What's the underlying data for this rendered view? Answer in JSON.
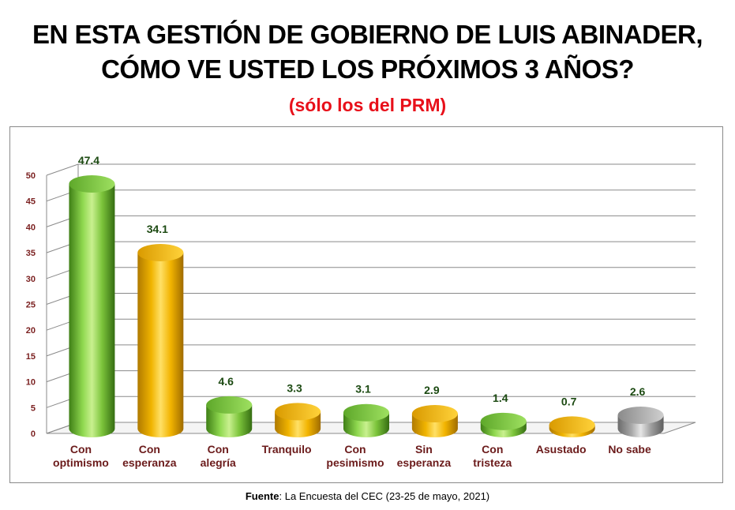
{
  "title_lines": [
    "EN ESTA GESTIÓN DE GOBIERNO DE LUIS ABINADER,",
    "CÓMO VE USTED LOS PRÓXIMOS 3 AÑOS?"
  ],
  "subtitle": "(sólo los del PRM)",
  "source": {
    "label": "Fuente",
    "text": ": La Encuesta del CEC (23-25 de mayo, 2021)"
  },
  "colors": {
    "green": "#7dc73f",
    "yellow": "#f2b800",
    "gray": "#a6a6a6",
    "value_label": "#1c4a12",
    "category_label": "#6b1b1b",
    "tick_label": "#7a1f1f"
  },
  "chart_data": {
    "type": "bar",
    "title": "EN ESTA GESTIÓN DE GOBIERNO DE LUIS ABINADER, CÓMO VE USTED LOS PRÓXIMOS 3 AÑOS?",
    "subtitle": "(sólo los del PRM)",
    "xlabel": "",
    "ylabel": "",
    "ylim": [
      0,
      50
    ],
    "yticks": [
      0,
      5,
      10,
      15,
      20,
      25,
      30,
      35,
      40,
      45,
      50
    ],
    "grid": true,
    "categories": [
      [
        "Con",
        "optimismo"
      ],
      [
        "Con",
        "esperanza"
      ],
      [
        "Con",
        "alegría"
      ],
      [
        "Tranquilo"
      ],
      [
        "Con",
        "pesimismo"
      ],
      [
        "Sin",
        "esperanza"
      ],
      [
        "Con",
        "tristeza"
      ],
      [
        "Asustado"
      ],
      [
        "No sabe"
      ]
    ],
    "values": [
      47.4,
      34.1,
      4.6,
      3.3,
      3.1,
      2.9,
      1.4,
      0.7,
      2.6
    ],
    "value_labels": [
      "47.4",
      "34.1",
      "4.6",
      "3.3",
      "3.1",
      "2.9",
      "1.4",
      "0.7",
      "2.6"
    ],
    "bar_colors": [
      "green",
      "yellow",
      "green",
      "yellow",
      "green",
      "yellow",
      "green",
      "yellow",
      "gray"
    ]
  }
}
